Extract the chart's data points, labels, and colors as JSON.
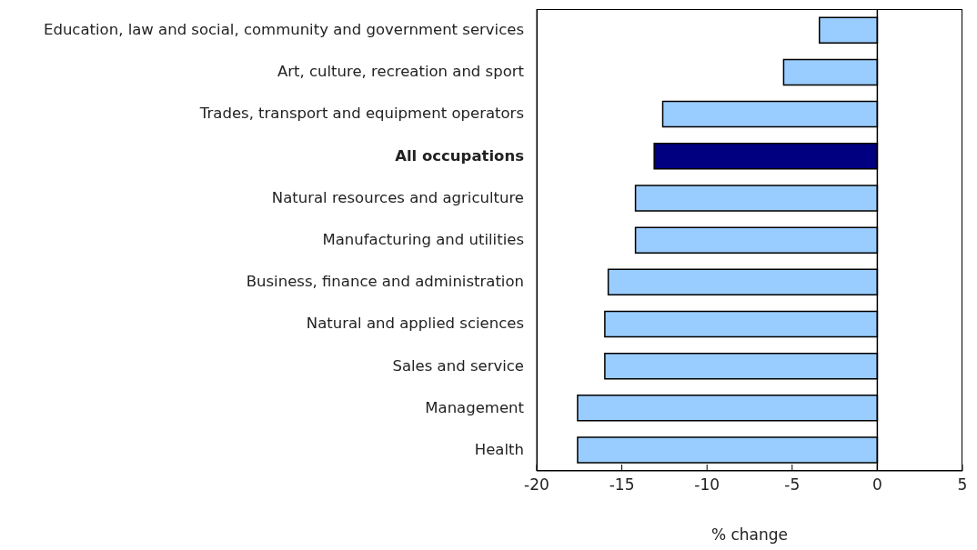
{
  "chart_data": {
    "type": "bar",
    "orientation": "horizontal",
    "xlabel": "% change",
    "categories": [
      "Education, law and social, community and government services",
      "Art, culture, recreation and sport",
      "Trades, transport and equipment operators",
      "All occupations",
      "Natural resources and agriculture",
      "Manufacturing and utilities",
      "Business, finance and administration",
      "Natural and applied sciences",
      "Sales and service",
      "Management",
      "Health"
    ],
    "values": [
      -3.4,
      -5.5,
      -12.6,
      -13.1,
      -14.2,
      -14.2,
      -15.8,
      -16.0,
      -16.0,
      -17.6,
      -17.6
    ],
    "colors": [
      "#99ccff",
      "#99ccff",
      "#99ccff",
      "#000080",
      "#99ccff",
      "#99ccff",
      "#99ccff",
      "#99ccff",
      "#99ccff",
      "#99ccff",
      "#99ccff"
    ],
    "xlim": [
      -20,
      5
    ],
    "xticks": [
      -20,
      -15,
      -10,
      -5,
      0,
      5
    ],
    "ref_lines": [
      {
        "axis": "x",
        "value": 0,
        "color": "#000000"
      }
    ],
    "grid": false
  }
}
